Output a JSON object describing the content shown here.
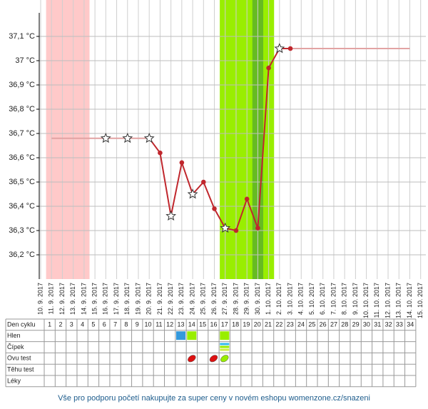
{
  "chart_data": {
    "type": "line",
    "categories": [
      "10. 9. 2017",
      "11. 9. 2017",
      "12. 9. 2017",
      "13. 9. 2017",
      "14. 9. 2017",
      "15. 9. 2017",
      "16. 9. 2017",
      "17. 9. 2017",
      "18. 9. 2017",
      "19. 9. 2017",
      "20. 9. 2017",
      "21. 9. 2017",
      "22. 9. 2017",
      "23. 9. 2017",
      "24. 9. 2017",
      "25. 9. 2017",
      "26. 9. 2017",
      "27. 9. 2017",
      "28. 9. 2017",
      "29. 9. 2017",
      "30. 9. 2017",
      "1. 10. 2017",
      "2. 10. 2017",
      "3. 10. 2017",
      "4. 10. 2017",
      "5. 10. 2017",
      "6. 10. 2017",
      "7. 10. 2017",
      "8. 10. 2017",
      "9. 10. 2017",
      "10. 10. 2017",
      "11. 10. 2017",
      "12. 10. 2017",
      "13. 10. 2017",
      "14. 10. 2017",
      "15. 10. 2017"
    ],
    "series": [
      {
        "color": "#c0272d",
        "values": [
          null,
          null,
          null,
          null,
          null,
          null,
          36.68,
          null,
          36.68,
          null,
          36.68,
          36.62,
          36.36,
          36.58,
          36.45,
          36.5,
          36.39,
          36.31,
          36.3,
          36.43,
          36.31,
          36.97,
          37.05,
          37.05,
          null,
          null,
          null,
          null,
          null,
          null,
          null,
          null,
          null,
          null,
          null,
          null
        ],
        "markers": [
          "dot",
          "dot",
          "dot",
          "dot",
          "dot",
          "dot",
          "star",
          "dot",
          "star",
          "dot",
          "star",
          "dot",
          "star",
          "dot",
          "star",
          "dot",
          "dot",
          "star",
          "dot",
          "dot",
          "dot",
          "dot",
          "star",
          "dot",
          "dot",
          "dot",
          "dot",
          "dot",
          "dot",
          "dot",
          "dot",
          "dot",
          "dot",
          "dot",
          "dot",
          "dot"
        ]
      }
    ],
    "reference_lines": [
      {
        "value": 36.68,
        "from": 1,
        "to": 10,
        "color": "#e2a3a3"
      },
      {
        "value": 37.05,
        "from": 23,
        "to": 34,
        "color": "#e2a3a3"
      }
    ],
    "bands": [
      {
        "from": 1,
        "to": 4,
        "color": "#ffc9c9"
      },
      {
        "from": 17,
        "to": 21,
        "color": "#99ee00"
      },
      {
        "from": 20,
        "to": 20,
        "color": "#66bb22"
      }
    ],
    "ylim": [
      36.1,
      37.25
    ],
    "yticks": [
      {
        "value": 36.2,
        "label": "36,2 °C"
      },
      {
        "value": 36.3,
        "label": "36,3 °C"
      },
      {
        "value": 36.4,
        "label": "36,4 °C"
      },
      {
        "value": 36.5,
        "label": "36,5 °C"
      },
      {
        "value": 36.6,
        "label": "36,6 °C"
      },
      {
        "value": 36.7,
        "label": "36,7 °C"
      },
      {
        "value": 36.8,
        "label": "36,8 °C"
      },
      {
        "value": 36.9,
        "label": "36,9 °C"
      },
      {
        "value": 37,
        "label": "37 °C"
      },
      {
        "value": 37.1,
        "label": "37,1 °C"
      }
    ],
    "grid": true
  },
  "table": {
    "row_labels": [
      "Den cyklu",
      "Hlen",
      "Čípek",
      "Ovu test",
      "Těhu test",
      "Léky"
    ],
    "cycle_days": [
      1,
      2,
      3,
      4,
      5,
      6,
      7,
      8,
      9,
      10,
      11,
      12,
      13,
      14,
      15,
      16,
      17,
      18,
      19,
      20,
      21,
      22,
      23,
      24,
      25,
      26,
      27,
      28,
      29,
      30,
      31,
      32,
      33,
      34
    ],
    "marks": [
      {
        "row": 1,
        "day": 13,
        "shape": "square",
        "color": "#3399dd"
      },
      {
        "row": 1,
        "day": 14,
        "shape": "square",
        "color": "#99ee00"
      },
      {
        "row": 1,
        "day": 17,
        "shape": "square",
        "color": "#99ee00"
      },
      {
        "row": 2,
        "day": 17,
        "shape": "stripes",
        "color": "#33bbee"
      },
      {
        "row": 3,
        "day": 14,
        "shape": "leaf",
        "color": "#dd1111"
      },
      {
        "row": 3,
        "day": 16,
        "shape": "leaf",
        "color": "#dd1111"
      },
      {
        "row": 3,
        "day": 17,
        "shape": "leaf",
        "color": "#99ee00"
      }
    ]
  },
  "footer": "Vše pro podporu početí nakupujte za super ceny v novém eshopu womenzone.cz/snazeni"
}
